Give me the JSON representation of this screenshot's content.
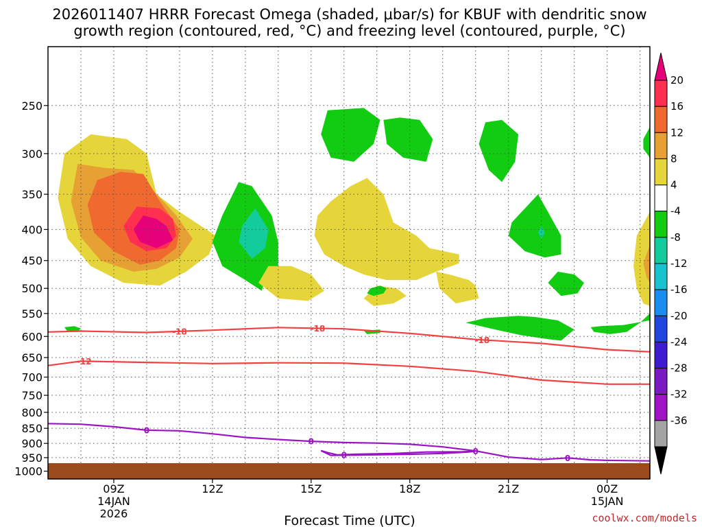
{
  "chart_data": {
    "type": "heatmap",
    "title_lines": [
      "2026011407 HRRR Forecast Omega (shaded, μbar/s) for KBUF with dendritic snow",
      "growth region (contoured, red, °C) and freezing level (contoured, purple, °C)"
    ],
    "xlabel": "Forecast Time (UTC)",
    "ylabel": "",
    "x_range_hours": [
      7.0,
      25.3
    ],
    "y_range_hpa": [
      1030,
      200
    ],
    "x_ticks": [
      {
        "hour": 9,
        "lines": [
          "09Z",
          "14JAN",
          "2026"
        ]
      },
      {
        "hour": 12,
        "lines": [
          "12Z"
        ]
      },
      {
        "hour": 15,
        "lines": [
          "15Z"
        ]
      },
      {
        "hour": 18,
        "lines": [
          "18Z"
        ]
      },
      {
        "hour": 21,
        "lines": [
          "21Z"
        ]
      },
      {
        "hour": 24,
        "lines": [
          "00Z",
          "15JAN"
        ]
      }
    ],
    "y_ticks": [
      250,
      300,
      350,
      400,
      450,
      500,
      550,
      600,
      650,
      700,
      750,
      800,
      850,
      900,
      950,
      1000
    ],
    "grid": true,
    "ground_below_hpa": 970,
    "colorbar": {
      "labels": [
        "20",
        "16",
        "12",
        "8",
        "4",
        "-4",
        "-8",
        "-12",
        "-16",
        "-20",
        "-24",
        "-28",
        "-32",
        "-36"
      ],
      "colors": [
        "#ff2f4f",
        "#f06a30",
        "#e6a033",
        "#e6d53a",
        "#ffffff",
        "#12cc12",
        "#13cc9c",
        "#18c2d0",
        "#1a8ef0",
        "#2048e0",
        "#3e1ad0",
        "#7a18c4",
        "#a014c4",
        "#a4a4a4"
      ],
      "top_arrow_color": "#e6007a",
      "bottom_arrow_color": "#000000"
    },
    "omega_regions": [
      {
        "name": "rising-plume-4",
        "fill": "#e6d53a",
        "points": [
          [
            7.5,
            1.0
          ],
          [
            7.3,
            2.1
          ],
          [
            7.6,
            3.3
          ],
          [
            8.3,
            4.2
          ],
          [
            9.3,
            4.8
          ],
          [
            10.4,
            4.9
          ],
          [
            11.2,
            4.4
          ],
          [
            11.9,
            3.8
          ],
          [
            12.1,
            3.2
          ],
          [
            11.0,
            2.5
          ],
          [
            10.3,
            2.0
          ],
          [
            10.0,
            1.0
          ],
          [
            9.4,
            0.7
          ],
          [
            8.3,
            0.6
          ]
        ]
      },
      {
        "name": "rising-plume-8",
        "fill": "#e6a033",
        "points": [
          [
            7.9,
            1.25
          ],
          [
            7.7,
            2.2
          ],
          [
            8.0,
            3.25
          ],
          [
            8.6,
            4.0
          ],
          [
            9.6,
            4.4
          ],
          [
            10.3,
            4.3
          ],
          [
            11.0,
            3.9
          ],
          [
            11.4,
            3.3
          ],
          [
            10.9,
            2.6
          ],
          [
            10.2,
            1.9
          ],
          [
            9.6,
            1.4
          ],
          [
            8.7,
            1.35
          ]
        ]
      },
      {
        "name": "rising-plume-12",
        "fill": "#f06a30",
        "points": [
          [
            8.5,
            1.65
          ],
          [
            8.2,
            2.3
          ],
          [
            8.4,
            3.1
          ],
          [
            9.0,
            3.7
          ],
          [
            9.8,
            4.15
          ],
          [
            10.4,
            4.0
          ],
          [
            10.9,
            3.6
          ],
          [
            11.0,
            3.0
          ],
          [
            10.4,
            2.2
          ],
          [
            9.9,
            1.5
          ],
          [
            9.2,
            1.45
          ]
        ]
      },
      {
        "name": "rising-plume-16",
        "fill": "#ff2f4f",
        "points": [
          [
            9.7,
            2.35
          ],
          [
            9.3,
            2.9
          ],
          [
            9.5,
            3.4
          ],
          [
            10.0,
            3.7
          ],
          [
            10.6,
            3.6
          ],
          [
            10.9,
            3.2
          ],
          [
            10.8,
            2.7
          ],
          [
            10.4,
            2.4
          ]
        ]
      },
      {
        "name": "rising-plume-20",
        "fill": "#e6007a",
        "points": [
          [
            9.9,
            2.6
          ],
          [
            9.6,
            3.0
          ],
          [
            9.8,
            3.4
          ],
          [
            10.3,
            3.6
          ],
          [
            10.8,
            3.35
          ],
          [
            10.6,
            2.9
          ],
          [
            10.3,
            2.7
          ]
        ]
      },
      {
        "name": "sinking-band-a",
        "fill": "#12cc12",
        "points": [
          [
            12.8,
            1.7
          ],
          [
            12.3,
            2.6
          ],
          [
            12.0,
            3.4
          ],
          [
            12.3,
            4.2
          ],
          [
            13.0,
            4.7
          ],
          [
            13.5,
            5.1
          ],
          [
            13.6,
            4.6
          ],
          [
            14.0,
            4.2
          ],
          [
            14.0,
            3.4
          ],
          [
            13.8,
            2.6
          ],
          [
            13.2,
            1.8
          ]
        ]
      },
      {
        "name": "sinking-band-a-core",
        "fill": "#13cc9c",
        "points": [
          [
            13.3,
            2.4
          ],
          [
            12.9,
            2.9
          ],
          [
            12.8,
            3.4
          ],
          [
            13.2,
            3.95
          ],
          [
            13.6,
            3.6
          ],
          [
            13.7,
            3.0
          ]
        ]
      },
      {
        "name": "rising-midlevel-b",
        "fill": "#e6d53a",
        "points": [
          [
            15.6,
            2.2
          ],
          [
            15.2,
            2.6
          ],
          [
            15.1,
            3.2
          ],
          [
            15.4,
            3.8
          ],
          [
            16.0,
            4.2
          ],
          [
            16.6,
            4.5
          ],
          [
            17.3,
            4.7
          ],
          [
            18.2,
            4.7
          ],
          [
            18.8,
            4.4
          ],
          [
            19.5,
            4.1
          ],
          [
            19.5,
            3.8
          ],
          [
            18.6,
            3.6
          ],
          [
            18.2,
            3.2
          ],
          [
            17.5,
            2.8
          ],
          [
            17.2,
            2.0
          ],
          [
            16.7,
            1.6
          ],
          [
            16.2,
            1.8
          ]
        ]
      },
      {
        "name": "rising-lowlevel-c",
        "fill": "#e6d53a",
        "points": [
          [
            13.7,
            4.2
          ],
          [
            13.4,
            4.8
          ],
          [
            14.0,
            5.4
          ],
          [
            14.9,
            5.5
          ],
          [
            15.4,
            5.1
          ],
          [
            15.0,
            4.5
          ],
          [
            14.4,
            4.2
          ]
        ]
      },
      {
        "name": "rising-lowlevel-d",
        "fill": "#e6d53a",
        "points": [
          [
            17.0,
            4.9
          ],
          [
            16.6,
            5.4
          ],
          [
            16.9,
            5.7
          ],
          [
            17.5,
            5.6
          ],
          [
            17.9,
            5.3
          ],
          [
            17.6,
            5.0
          ]
        ]
      },
      {
        "name": "rising-lowlevel-e",
        "fill": "#e6d53a",
        "points": [
          [
            18.8,
            4.4
          ],
          [
            18.9,
            5.0
          ],
          [
            19.4,
            5.6
          ],
          [
            20.1,
            5.4
          ],
          [
            20.0,
            4.9
          ],
          [
            19.8,
            4.7
          ],
          [
            19.2,
            4.5
          ]
        ]
      },
      {
        "name": "sinking-top-1",
        "fill": "#12cc12",
        "points": [
          [
            15.5,
            0.1
          ],
          [
            15.3,
            0.6
          ],
          [
            15.6,
            1.1
          ],
          [
            16.3,
            1.2
          ],
          [
            16.9,
            0.8
          ],
          [
            17.1,
            0.3
          ],
          [
            16.6,
            0.05
          ]
        ]
      },
      {
        "name": "sinking-top-2",
        "fill": "#12cc12",
        "points": [
          [
            17.2,
            0.3
          ],
          [
            17.3,
            0.8
          ],
          [
            17.8,
            1.1
          ],
          [
            18.5,
            1.2
          ],
          [
            18.7,
            0.7
          ],
          [
            18.3,
            0.3
          ],
          [
            17.7,
            0.25
          ]
        ]
      },
      {
        "name": "sinking-top-3",
        "fill": "#12cc12",
        "points": [
          [
            20.3,
            0.35
          ],
          [
            20.1,
            0.8
          ],
          [
            20.4,
            1.4
          ],
          [
            20.8,
            1.7
          ],
          [
            21.2,
            1.2
          ],
          [
            21.3,
            0.6
          ],
          [
            20.8,
            0.3
          ]
        ]
      },
      {
        "name": "sinking-right-f",
        "fill": "#12cc12",
        "points": [
          [
            21.9,
            2.0
          ],
          [
            21.1,
            2.8
          ],
          [
            21.0,
            3.2
          ],
          [
            21.5,
            3.7
          ],
          [
            22.1,
            3.9
          ],
          [
            22.6,
            3.8
          ],
          [
            22.6,
            3.2
          ],
          [
            22.2,
            2.5
          ]
        ]
      },
      {
        "name": "sinking-right-f-core",
        "fill": "#13cc9c",
        "points": [
          [
            22.0,
            2.9
          ],
          [
            21.9,
            3.1
          ],
          [
            22.0,
            3.3
          ],
          [
            22.1,
            3.1
          ]
        ]
      },
      {
        "name": "sinking-low-g",
        "fill": "#12cc12",
        "points": [
          [
            22.5,
            4.4
          ],
          [
            22.2,
            4.8
          ],
          [
            22.6,
            5.3
          ],
          [
            23.1,
            5.2
          ],
          [
            23.3,
            4.8
          ],
          [
            23.0,
            4.5
          ]
        ]
      },
      {
        "name": "sinking-low-h",
        "fill": "#12cc12",
        "points": [
          [
            19.7,
            6.4
          ],
          [
            20.6,
            6.7
          ],
          [
            21.4,
            6.95
          ],
          [
            22.3,
            7.15
          ],
          [
            22.6,
            7.2
          ],
          [
            23.0,
            6.7
          ],
          [
            22.5,
            6.3
          ],
          [
            21.8,
            6.15
          ],
          [
            21.3,
            6.1
          ],
          [
            20.3,
            6.2
          ]
        ]
      },
      {
        "name": "sinking-low-i",
        "fill": "#12cc12",
        "points": [
          [
            16.6,
            6.75
          ],
          [
            16.7,
            6.9
          ],
          [
            17.1,
            6.85
          ],
          [
            17.1,
            6.7
          ]
        ]
      },
      {
        "name": "sinking-low-j",
        "fill": "#12cc12",
        "points": [
          [
            16.8,
            5.0
          ],
          [
            16.7,
            5.2
          ],
          [
            16.9,
            5.3
          ],
          [
            17.2,
            5.2
          ],
          [
            17.3,
            5.0
          ],
          [
            17.1,
            4.9
          ]
        ]
      },
      {
        "name": "sinking-low-k",
        "fill": "#12cc12",
        "points": [
          [
            23.5,
            6.6
          ],
          [
            23.6,
            6.8
          ],
          [
            24.1,
            6.9
          ],
          [
            24.6,
            6.8
          ],
          [
            25.0,
            6.4
          ],
          [
            25.3,
            6.0
          ],
          [
            25.3,
            6.3
          ],
          [
            24.5,
            6.5
          ],
          [
            23.8,
            6.55
          ]
        ]
      },
      {
        "name": "sinking-low-l",
        "fill": "#12cc12",
        "points": [
          [
            7.5,
            6.6
          ],
          [
            7.6,
            6.8
          ],
          [
            7.9,
            6.8
          ],
          [
            8.0,
            6.65
          ],
          [
            7.8,
            6.55
          ]
        ]
      },
      {
        "name": "rising-right-edge",
        "fill": "#e6d53a",
        "points": [
          [
            25.3,
            2.5
          ],
          [
            24.9,
            3.2
          ],
          [
            24.8,
            4.2
          ],
          [
            24.9,
            5.0
          ],
          [
            25.1,
            5.6
          ],
          [
            25.3,
            5.7
          ]
        ]
      },
      {
        "name": "rising-right-edge-8",
        "fill": "#e6a033",
        "points": [
          [
            25.3,
            3.5
          ],
          [
            25.1,
            4.1
          ],
          [
            25.2,
            4.6
          ],
          [
            25.3,
            4.8
          ]
        ]
      },
      {
        "name": "sinking-right-top",
        "fill": "#12cc12",
        "points": [
          [
            25.3,
            0.45
          ],
          [
            25.1,
            0.7
          ],
          [
            25.1,
            0.9
          ],
          [
            25.3,
            1.1
          ]
        ]
      }
    ],
    "dgz_isotherms": [
      {
        "value": "-18",
        "color": "#f24040",
        "label_hours": [
          11.0,
          15.2,
          20.2
        ],
        "points": [
          [
            7.0,
            590
          ],
          [
            8.0,
            588
          ],
          [
            10.0,
            591
          ],
          [
            12.0,
            586
          ],
          [
            14.0,
            580
          ],
          [
            16.0,
            583
          ],
          [
            18.0,
            593
          ],
          [
            20.0,
            607
          ],
          [
            22.0,
            616
          ],
          [
            24.0,
            631
          ],
          [
            25.3,
            636
          ]
        ]
      },
      {
        "value": "-12",
        "color": "#f24040",
        "label_hours": [
          8.1
        ],
        "points": [
          [
            7.0,
            670
          ],
          [
            8.0,
            659
          ],
          [
            10.0,
            662
          ],
          [
            12.0,
            665
          ],
          [
            14.0,
            663
          ],
          [
            16.0,
            664
          ],
          [
            18.0,
            672
          ],
          [
            20.0,
            685
          ],
          [
            22.0,
            708
          ],
          [
            24.0,
            719
          ],
          [
            25.3,
            719
          ]
        ]
      }
    ],
    "freezing_level": {
      "value": "0",
      "color": "#9a14c4",
      "label_hours": [
        10.0,
        15.0,
        16.0,
        20.0,
        22.8
      ],
      "main": [
        [
          7.0,
          835
        ],
        [
          8.0,
          837
        ],
        [
          9.0,
          845
        ],
        [
          10.0,
          856
        ],
        [
          11.0,
          858
        ],
        [
          12.0,
          868
        ],
        [
          13.0,
          880
        ],
        [
          14.0,
          887
        ],
        [
          15.0,
          893
        ],
        [
          16.0,
          897
        ],
        [
          17.0,
          899
        ],
        [
          18.0,
          903
        ],
        [
          19.0,
          912
        ],
        [
          20.0,
          926
        ],
        [
          21.0,
          948
        ],
        [
          22.0,
          957
        ],
        [
          22.8,
          951
        ],
        [
          23.5,
          958
        ],
        [
          24.0,
          960
        ],
        [
          25.3,
          962
        ]
      ],
      "inner_loop": [
        [
          15.3,
          925
        ],
        [
          15.6,
          942
        ],
        [
          16.8,
          940
        ],
        [
          18.0,
          938
        ],
        [
          19.0,
          935
        ],
        [
          19.8,
          930
        ],
        [
          20.0,
          927
        ],
        [
          19.6,
          929
        ],
        [
          18.5,
          930
        ],
        [
          17.5,
          935
        ],
        [
          16.3,
          938
        ],
        [
          15.8,
          940
        ],
        [
          15.5,
          932
        ],
        [
          15.3,
          925
        ]
      ]
    }
  },
  "credit": "coolwx.com/models"
}
